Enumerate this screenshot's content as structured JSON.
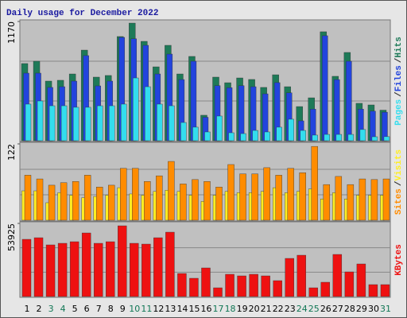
{
  "title": "Daily usage for December 2022",
  "legend_separator": "/",
  "chart_data": [
    {
      "type": "bar",
      "ylim": [
        0,
        1170
      ],
      "yticks": [
        1170
      ],
      "series": [
        {
          "name": "Hits",
          "color": "#1e7a58",
          "values": [
            757,
            780,
            585,
            593,
            655,
            889,
            624,
            640,
            1022,
            1154,
            975,
            725,
            936,
            655,
            827,
            250,
            624,
            569,
            616,
            601,
            523,
            647,
            530,
            335,
            421,
            1069,
            632,
            866,
            367,
            351,
            300
          ]
        },
        {
          "name": "Files",
          "color": "#2244dd",
          "values": [
            663,
            663,
            523,
            530,
            585,
            835,
            538,
            585,
            1014,
            1000,
            936,
            655,
            850,
            600,
            780,
            230,
            540,
            520,
            540,
            530,
            460,
            570,
            470,
            195,
            310,
            1030,
            600,
            780,
            310,
            290,
            280
          ]
        },
        {
          "name": "Pages",
          "color": "#33ddee",
          "values": [
            359,
            390,
            343,
            343,
            328,
            328,
            343,
            343,
            359,
            616,
            530,
            359,
            343,
            179,
            133,
            86,
            242,
            78,
            70,
            101,
            86,
            133,
            211,
            101,
            55,
            62,
            62,
            62,
            110,
            39,
            40
          ]
        }
      ]
    },
    {
      "type": "bar",
      "ylim": [
        0,
        122
      ],
      "yticks": [
        122
      ],
      "series": [
        {
          "name": "Visits",
          "color": "#ffee22",
          "values": [
            47,
            47,
            28,
            44,
            40,
            36,
            38,
            40,
            52,
            42,
            40,
            46,
            48,
            46,
            40,
            30,
            40,
            46,
            44,
            44,
            46,
            52,
            44,
            46,
            50,
            34,
            44,
            34,
            40,
            40,
            40
          ]
        },
        {
          "name": "Sites",
          "color": "#ff8c00",
          "values": [
            72,
            66,
            56,
            60,
            62,
            72,
            53,
            56,
            83,
            83,
            62,
            71,
            94,
            58,
            65,
            62,
            53,
            89,
            74,
            74,
            84,
            72,
            83,
            76,
            118,
            57,
            70,
            57,
            66,
            65,
            66
          ]
        }
      ]
    },
    {
      "type": "bar",
      "ylim": [
        0,
        53925
      ],
      "yticks": [
        53925
      ],
      "categories": [
        "1",
        "2",
        "3",
        "4",
        "5",
        "6",
        "7",
        "8",
        "9",
        "10",
        "11",
        "12",
        "13",
        "14",
        "15",
        "16",
        "17",
        "18",
        "19",
        "20",
        "21",
        "22",
        "23",
        "24",
        "25",
        "26",
        "27",
        "28",
        "29",
        "30",
        "31"
      ],
      "category_colors": [
        "#000",
        "#000",
        "#117755",
        "#117755",
        "#000",
        "#000",
        "#000",
        "#000",
        "#000",
        "#117755",
        "#117755",
        "#000",
        "#000",
        "#000",
        "#000",
        "#000",
        "#117755",
        "#117755",
        "#000",
        "#000",
        "#000",
        "#000",
        "#000",
        "#117755",
        "#117755",
        "#000",
        "#000",
        "#000",
        "#000",
        "#000",
        "#117755"
      ],
      "series": [
        {
          "name": "KBytes",
          "color": "#ee1111",
          "values": [
            42192,
            43364,
            38090,
            39262,
            40434,
            46880,
            39262,
            40434,
            52154,
            39262,
            38676,
            43364,
            47466,
            16994,
            13478,
            21096,
            6446,
            16408,
            15236,
            16408,
            15236,
            11720,
            28128,
            30472,
            6446,
            10548,
            31058,
            18166,
            24026,
            8790,
            8790
          ]
        }
      ]
    }
  ]
}
